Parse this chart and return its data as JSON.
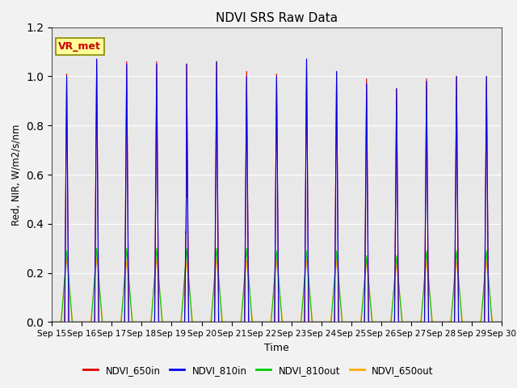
{
  "title": "NDVI SRS Raw Data",
  "xlabel": "Time",
  "ylabel": "Red, NIR, W/m2/s/nm",
  "ylim": [
    0.0,
    1.2
  ],
  "yticks": [
    0.0,
    0.2,
    0.4,
    0.6,
    0.8,
    1.0,
    1.2
  ],
  "annotation_text": "VR_met",
  "annotation_color": "#cc0000",
  "annotation_bg": "#ffff99",
  "annotation_border": "#888800",
  "bg_color": "#e8e8e8",
  "fig_bg_color": "#f2f2f2",
  "series": [
    {
      "label": "NDVI_650in",
      "color": "#dd0000"
    },
    {
      "label": "NDVI_810in",
      "color": "#0000ee"
    },
    {
      "label": "NDVI_810out",
      "color": "#00cc00"
    },
    {
      "label": "NDVI_650out",
      "color": "#ffaa00"
    }
  ],
  "peaks_650in": [
    1.01,
    1.07,
    1.06,
    1.06,
    1.05,
    1.06,
    1.02,
    1.01,
    1.07,
    1.02,
    0.99,
    0.95,
    0.99,
    1.0,
    1.0
  ],
  "peaks_810in": [
    1.0,
    1.07,
    1.05,
    1.05,
    1.05,
    1.06,
    1.0,
    1.0,
    1.07,
    1.02,
    0.97,
    0.95,
    0.98,
    1.0,
    1.0
  ],
  "peaks_810out": [
    0.29,
    0.3,
    0.3,
    0.3,
    0.3,
    0.3,
    0.3,
    0.29,
    0.29,
    0.29,
    0.27,
    0.27,
    0.29,
    0.29,
    0.29
  ],
  "peaks_650out": [
    0.26,
    0.26,
    0.25,
    0.26,
    0.25,
    0.26,
    0.25,
    0.25,
    0.25,
    0.25,
    0.25,
    0.24,
    0.25,
    0.25,
    0.25
  ],
  "xtick_labels": [
    "Sep 15",
    "Sep 16",
    "Sep 17",
    "Sep 18",
    "Sep 19",
    "Sep 20",
    "Sep 21",
    "Sep 22",
    "Sep 23",
    "Sep 24",
    "Sep 25",
    "Sep 26",
    "Sep 27",
    "Sep 28",
    "Sep 29",
    "Sep 30"
  ]
}
